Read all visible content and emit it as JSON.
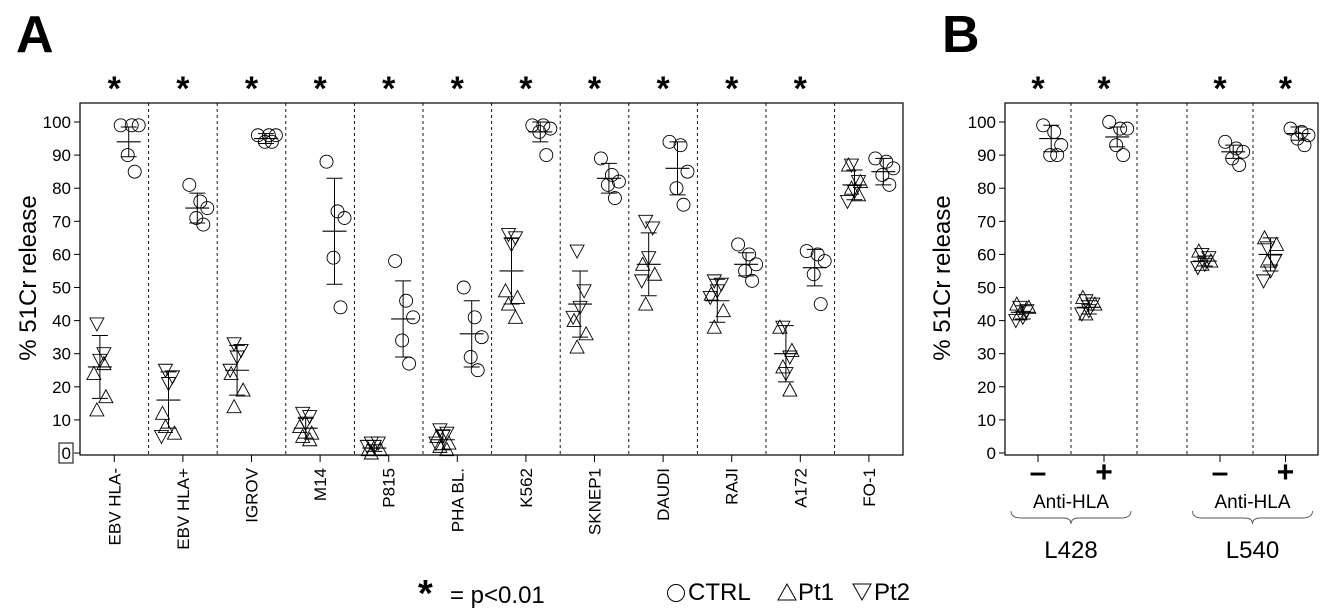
{
  "panel_labels": {
    "a": "A",
    "b": "B"
  },
  "significance_marker": "*",
  "footnote": {
    "star": "*",
    "text": "= p<0.01"
  },
  "legend": [
    {
      "label": "CTRL",
      "marker": "circle"
    },
    {
      "label": "Pt1",
      "marker": "triangle-up"
    },
    {
      "label": "Pt2",
      "marker": "triangle-down"
    }
  ],
  "chart_data": [
    {
      "type": "scatter",
      "panel": "A",
      "ylabel": "% 51Cr release",
      "ylim": [
        0,
        100
      ],
      "yticks": [
        0,
        10,
        20,
        30,
        40,
        50,
        60,
        70,
        80,
        90,
        100
      ],
      "grid": false,
      "categories": [
        {
          "label": "EBV HLA-",
          "significant": true,
          "patients": {
            "mean": 26,
            "sd": 9.5,
            "pt1": [
              24,
              17,
              13,
              27
            ],
            "pt2": [
              39,
              30,
              28
            ]
          },
          "ctrl": {
            "mean": 94,
            "sd": 4.5,
            "values": [
              99,
              99,
              99,
              90,
              85
            ]
          }
        },
        {
          "label": "EBV HLA+",
          "significant": true,
          "patients": {
            "mean": 16,
            "sd": 8.5,
            "pt1": [
              12,
              6,
              8
            ],
            "pt2": [
              25,
              23,
              21,
              5
            ]
          },
          "ctrl": {
            "mean": 74,
            "sd": 4.5,
            "values": [
              81,
              76,
              74,
              71,
              69
            ]
          }
        },
        {
          "label": "IGROV",
          "significant": true,
          "patients": {
            "mean": 25,
            "sd": 7.5,
            "pt1": [
              24,
              19,
              14
            ],
            "pt2": [
              33,
              31,
              29,
              25
            ]
          },
          "ctrl": {
            "mean": 95,
            "sd": 1.5,
            "values": [
              96,
              96,
              96,
              94,
              94
            ]
          }
        },
        {
          "label": "M14",
          "significant": true,
          "patients": {
            "mean": 7.5,
            "sd": 3,
            "pt1": [
              8,
              6,
              5,
              4
            ],
            "pt2": [
              12,
              11,
              9
            ]
          },
          "ctrl": {
            "mean": 67,
            "sd": 16,
            "values": [
              88,
              73,
              71,
              59,
              44
            ]
          }
        },
        {
          "label": "P815",
          "significant": true,
          "patients": {
            "mean": 1.5,
            "sd": 1,
            "pt1": [
              1,
              1,
              0
            ],
            "pt2": [
              3,
              3,
              2,
              2
            ]
          },
          "ctrl": {
            "mean": 40.5,
            "sd": 11.5,
            "values": [
              58,
              46,
              41,
              34,
              27
            ]
          }
        },
        {
          "label": "PHA BL.",
          "significant": true,
          "patients": {
            "mean": 4,
            "sd": 3,
            "pt1": [
              5,
              3,
              2,
              1
            ],
            "pt2": [
              7,
              6,
              5,
              3
            ]
          },
          "ctrl": {
            "mean": 36,
            "sd": 10,
            "values": [
              50,
              41,
              35,
              29,
              25
            ]
          }
        },
        {
          "label": "K562",
          "significant": true,
          "patients": {
            "mean": 55,
            "sd": 10,
            "pt1": [
              49,
              47,
              45,
              41
            ],
            "pt2": [
              66,
              65,
              63
            ]
          },
          "ctrl": {
            "mean": 97,
            "sd": 3,
            "values": [
              99,
              99,
              98,
              97,
              90
            ]
          }
        },
        {
          "label": "SKNEP1",
          "significant": true,
          "patients": {
            "mean": 45,
            "sd": 10,
            "pt1": [
              40,
              36,
              32
            ],
            "pt2": [
              61,
              49,
              44,
              41
            ]
          },
          "ctrl": {
            "mean": 83,
            "sd": 4.5,
            "values": [
              89,
              84,
              82,
              81,
              77
            ]
          }
        },
        {
          "label": "DAUDI",
          "significant": true,
          "patients": {
            "mean": 57,
            "sd": 9.5,
            "pt1": [
              57,
              54,
              45
            ],
            "pt2": [
              70,
              68,
              59,
              52
            ]
          },
          "ctrl": {
            "mean": 86,
            "sd": 8,
            "values": [
              94,
              93,
              85,
              80,
              75
            ]
          }
        },
        {
          "label": "RAJI",
          "significant": true,
          "patients": {
            "mean": 46,
            "sd": 6.5,
            "pt1": [
              48,
              43,
              38
            ],
            "pt2": [
              52,
              51,
              49,
              47
            ]
          },
          "ctrl": {
            "mean": 57,
            "sd": 3.5,
            "values": [
              63,
              60,
              57,
              55,
              52
            ]
          }
        },
        {
          "label": "A172",
          "significant": true,
          "patients": {
            "mean": 30,
            "sd": 8.5,
            "pt1": [
              38,
              31,
              26,
              19
            ],
            "pt2": [
              38,
              29,
              24
            ]
          },
          "ctrl": {
            "mean": 56,
            "sd": 5.5,
            "values": [
              61,
              60,
              58,
              54,
              45
            ]
          }
        },
        {
          "label": "FO-1",
          "significant": false,
          "patients": {
            "mean": 81,
            "sd": 4.5,
            "pt1": [
              87,
              82,
              80,
              78
            ],
            "pt2": [
              87,
              82,
              79,
              76
            ]
          },
          "ctrl": {
            "mean": 85,
            "sd": 4,
            "values": [
              89,
              88,
              86,
              84,
              81
            ]
          }
        }
      ]
    },
    {
      "type": "scatter",
      "panel": "B",
      "ylabel": "% 51Cr release",
      "ylim": [
        0,
        100
      ],
      "yticks": [
        0,
        10,
        20,
        30,
        40,
        50,
        60,
        70,
        80,
        90,
        100
      ],
      "grid": false,
      "groups": [
        {
          "label": "L428",
          "treatment_label": "Anti-HLA",
          "conditions": [
            {
              "label": "–",
              "significant": true,
              "patients": {
                "mean": 42.5,
                "sd": 2,
                "pt1": [
                  45,
                  44,
                  42
                ],
                "pt2": [
                  44,
                  43,
                  41,
                  40
                ]
              },
              "ctrl": {
                "mean": 95,
                "sd": 4,
                "values": [
                  99,
                  97,
                  93,
                  90,
                  90
                ]
              }
            },
            {
              "label": "+",
              "significant": true,
              "patients": {
                "mean": 44,
                "sd": 2,
                "pt1": [
                  47,
                  45,
                  42
                ],
                "pt2": [
                  46,
                  45,
                  43,
                  42
                ]
              },
              "ctrl": {
                "mean": 95.5,
                "sd": 3,
                "values": [
                  100,
                  98,
                  98,
                  93,
                  90
                ]
              }
            }
          ]
        },
        {
          "label": "L540",
          "treatment_label": "Anti-HLA",
          "conditions": [
            {
              "label": "–",
              "significant": true,
              "patients": {
                "mean": 58,
                "sd": 1.5,
                "pt1": [
                  61,
                  58,
                  57
                ],
                "pt2": [
                  60,
                  59,
                  57,
                  56
                ]
              },
              "ctrl": {
                "mean": 91,
                "sd": 2,
                "values": [
                  94,
                  92,
                  91,
                  89,
                  87
                ]
              }
            },
            {
              "label": "+",
              "significant": true,
              "patients": {
                "mean": 60,
                "sd": 5,
                "pt1": [
                  65,
                  63,
                  58
                ],
                "pt2": [
                  62,
                  58,
                  55,
                  52
                ]
              },
              "ctrl": {
                "mean": 96.5,
                "sd": 2,
                "values": [
                  98,
                  97,
                  96,
                  95,
                  93
                ]
              }
            }
          ]
        }
      ]
    }
  ]
}
